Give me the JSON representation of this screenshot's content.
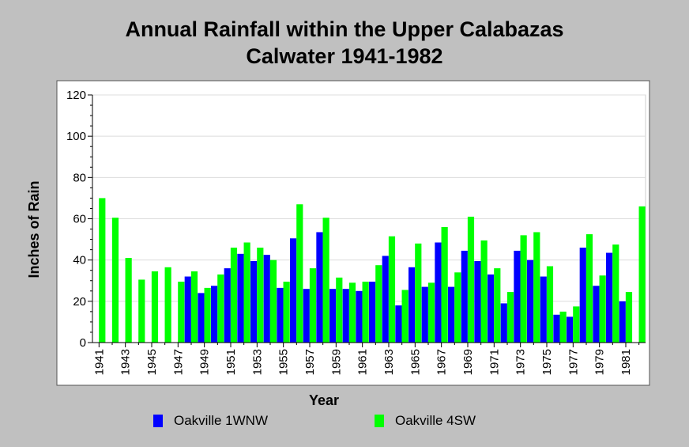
{
  "chart_data": {
    "type": "bar",
    "title_lines": [
      "Annual Rainfall within the Upper Calabazas",
      "Calwater 1941-1982"
    ],
    "xlabel": "Year",
    "ylabel": "Inches of Rain",
    "ylim": [
      0,
      120
    ],
    "yticks": [
      0,
      20,
      40,
      60,
      80,
      100,
      120
    ],
    "grid": "horizontal",
    "legend_position": "bottom",
    "categories": [
      "1941",
      "1942",
      "1943",
      "1944",
      "1945",
      "1946",
      "1947",
      "1948",
      "1949",
      "1950",
      "1951",
      "1952",
      "1953",
      "1954",
      "1955",
      "1956",
      "1957",
      "1958",
      "1959",
      "1960",
      "1961",
      "1962",
      "1963",
      "1964",
      "1965",
      "1966",
      "1967",
      "1968",
      "1969",
      "1970",
      "1971",
      "1972",
      "1973",
      "1974",
      "1975",
      "1976",
      "1977",
      "1978",
      "1979",
      "1980",
      "1981",
      "1982"
    ],
    "xtick_labels": [
      "1941",
      "1943",
      "1945",
      "1947",
      "1949",
      "1951",
      "1953",
      "1955",
      "1957",
      "1959",
      "1961",
      "1963",
      "1965",
      "1967",
      "1969",
      "1971",
      "1973",
      "1975",
      "1977",
      "1979",
      "1981"
    ],
    "series": [
      {
        "name": "Oakville 1WNW",
        "color": "#0000ff",
        "values": [
          null,
          null,
          null,
          null,
          null,
          null,
          null,
          32,
          24,
          27.5,
          36,
          43,
          39.5,
          42.5,
          26.5,
          50.5,
          26,
          53.5,
          26,
          26,
          25,
          29.5,
          42,
          18,
          36.5,
          27,
          48.5,
          27,
          44.5,
          39.5,
          33,
          19,
          44.5,
          40,
          32,
          13.5,
          12.5,
          46,
          27.5,
          43.5,
          20,
          null
        ]
      },
      {
        "name": "Oakville 4SW",
        "color": "#00ff00",
        "values": [
          70,
          60.5,
          41,
          30.5,
          34.5,
          36.5,
          29.5,
          34.5,
          26.5,
          33,
          46,
          48.5,
          46,
          40,
          29.5,
          67,
          36,
          60.5,
          31.5,
          29,
          29.5,
          37.5,
          51.5,
          25.5,
          48,
          29,
          56,
          34,
          61,
          49.5,
          36,
          24.5,
          52,
          53.5,
          37,
          15,
          17.5,
          52.5,
          32.5,
          47.5,
          24.5,
          66
        ]
      }
    ]
  }
}
